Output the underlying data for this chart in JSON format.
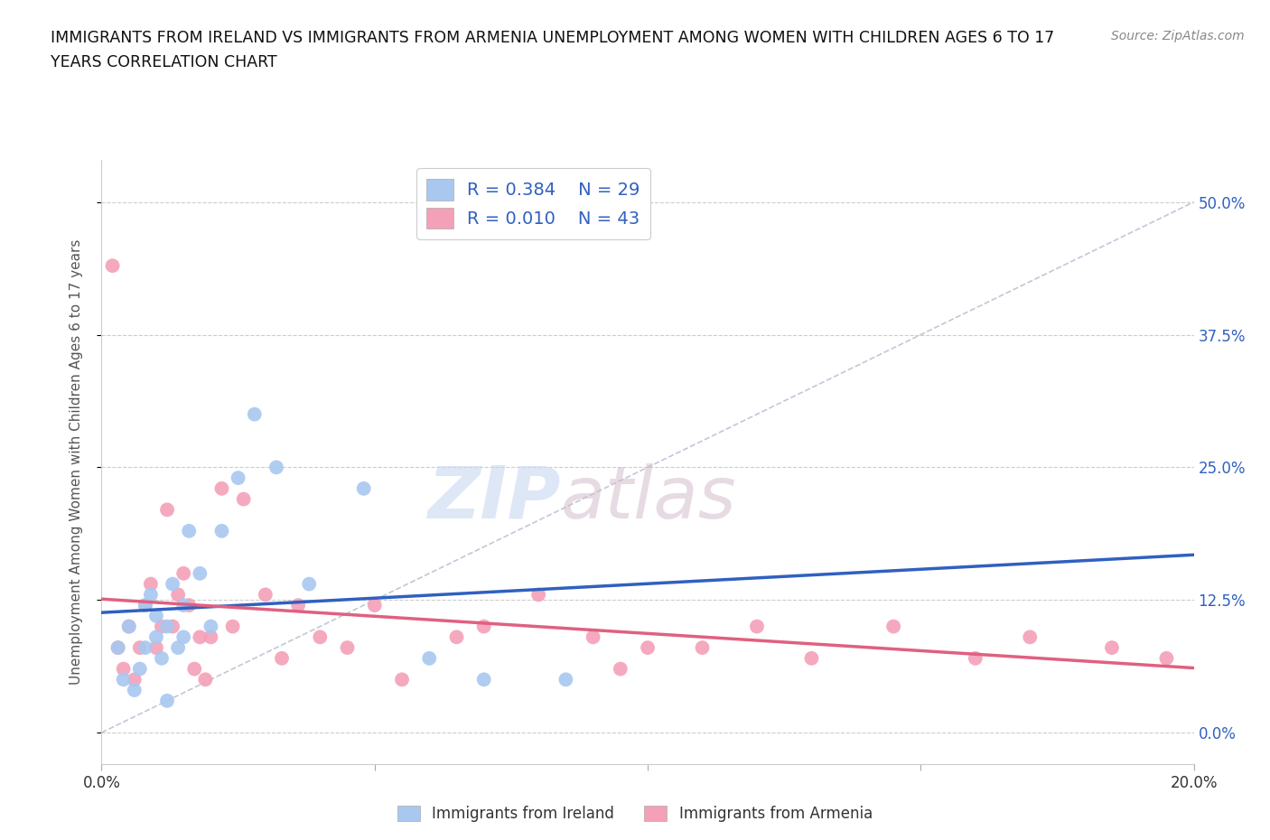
{
  "title_line1": "IMMIGRANTS FROM IRELAND VS IMMIGRANTS FROM ARMENIA UNEMPLOYMENT AMONG WOMEN WITH CHILDREN AGES 6 TO 17",
  "title_line2": "YEARS CORRELATION CHART",
  "source": "Source: ZipAtlas.com",
  "ylabel": "Unemployment Among Women with Children Ages 6 to 17 years",
  "xlim": [
    0.0,
    0.2
  ],
  "ylim": [
    -0.03,
    0.54
  ],
  "yticks": [
    0.0,
    0.125,
    0.25,
    0.375,
    0.5
  ],
  "ytick_labels": [
    "0.0%",
    "12.5%",
    "25.0%",
    "37.5%",
    "50.0%"
  ],
  "xticks": [
    0.0,
    0.05,
    0.1,
    0.15,
    0.2
  ],
  "xtick_labels": [
    "0.0%",
    "",
    "",
    "",
    "20.0%"
  ],
  "ireland_color": "#a8c8f0",
  "armenia_color": "#f4a0b8",
  "ireland_line_color": "#3060c0",
  "armenia_line_color": "#e06080",
  "diagonal_color": "#c0c8d8",
  "ireland_R": 0.384,
  "ireland_N": 29,
  "armenia_R": 0.01,
  "armenia_N": 43,
  "watermark_zip": "ZIP",
  "watermark_atlas": "atlas",
  "ireland_x": [
    0.003,
    0.004,
    0.005,
    0.006,
    0.007,
    0.008,
    0.008,
    0.009,
    0.01,
    0.01,
    0.011,
    0.012,
    0.012,
    0.013,
    0.014,
    0.015,
    0.015,
    0.016,
    0.018,
    0.02,
    0.022,
    0.025,
    0.028,
    0.032,
    0.038,
    0.048,
    0.06,
    0.07,
    0.085
  ],
  "ireland_y": [
    0.08,
    0.05,
    0.1,
    0.04,
    0.06,
    0.12,
    0.08,
    0.13,
    0.09,
    0.11,
    0.07,
    0.1,
    0.03,
    0.14,
    0.08,
    0.09,
    0.12,
    0.19,
    0.15,
    0.1,
    0.19,
    0.24,
    0.3,
    0.25,
    0.14,
    0.23,
    0.07,
    0.05,
    0.05
  ],
  "armenia_x": [
    0.002,
    0.003,
    0.004,
    0.005,
    0.006,
    0.007,
    0.008,
    0.009,
    0.01,
    0.011,
    0.012,
    0.013,
    0.014,
    0.015,
    0.016,
    0.017,
    0.018,
    0.019,
    0.02,
    0.022,
    0.024,
    0.026,
    0.03,
    0.033,
    0.036,
    0.04,
    0.045,
    0.05,
    0.055,
    0.065,
    0.07,
    0.08,
    0.09,
    0.095,
    0.1,
    0.11,
    0.12,
    0.13,
    0.145,
    0.16,
    0.17,
    0.185,
    0.195
  ],
  "armenia_y": [
    0.44,
    0.08,
    0.06,
    0.1,
    0.05,
    0.08,
    0.12,
    0.14,
    0.08,
    0.1,
    0.21,
    0.1,
    0.13,
    0.15,
    0.12,
    0.06,
    0.09,
    0.05,
    0.09,
    0.23,
    0.1,
    0.22,
    0.13,
    0.07,
    0.12,
    0.09,
    0.08,
    0.12,
    0.05,
    0.09,
    0.1,
    0.13,
    0.09,
    0.06,
    0.08,
    0.08,
    0.1,
    0.07,
    0.1,
    0.07,
    0.09,
    0.08,
    0.07
  ]
}
